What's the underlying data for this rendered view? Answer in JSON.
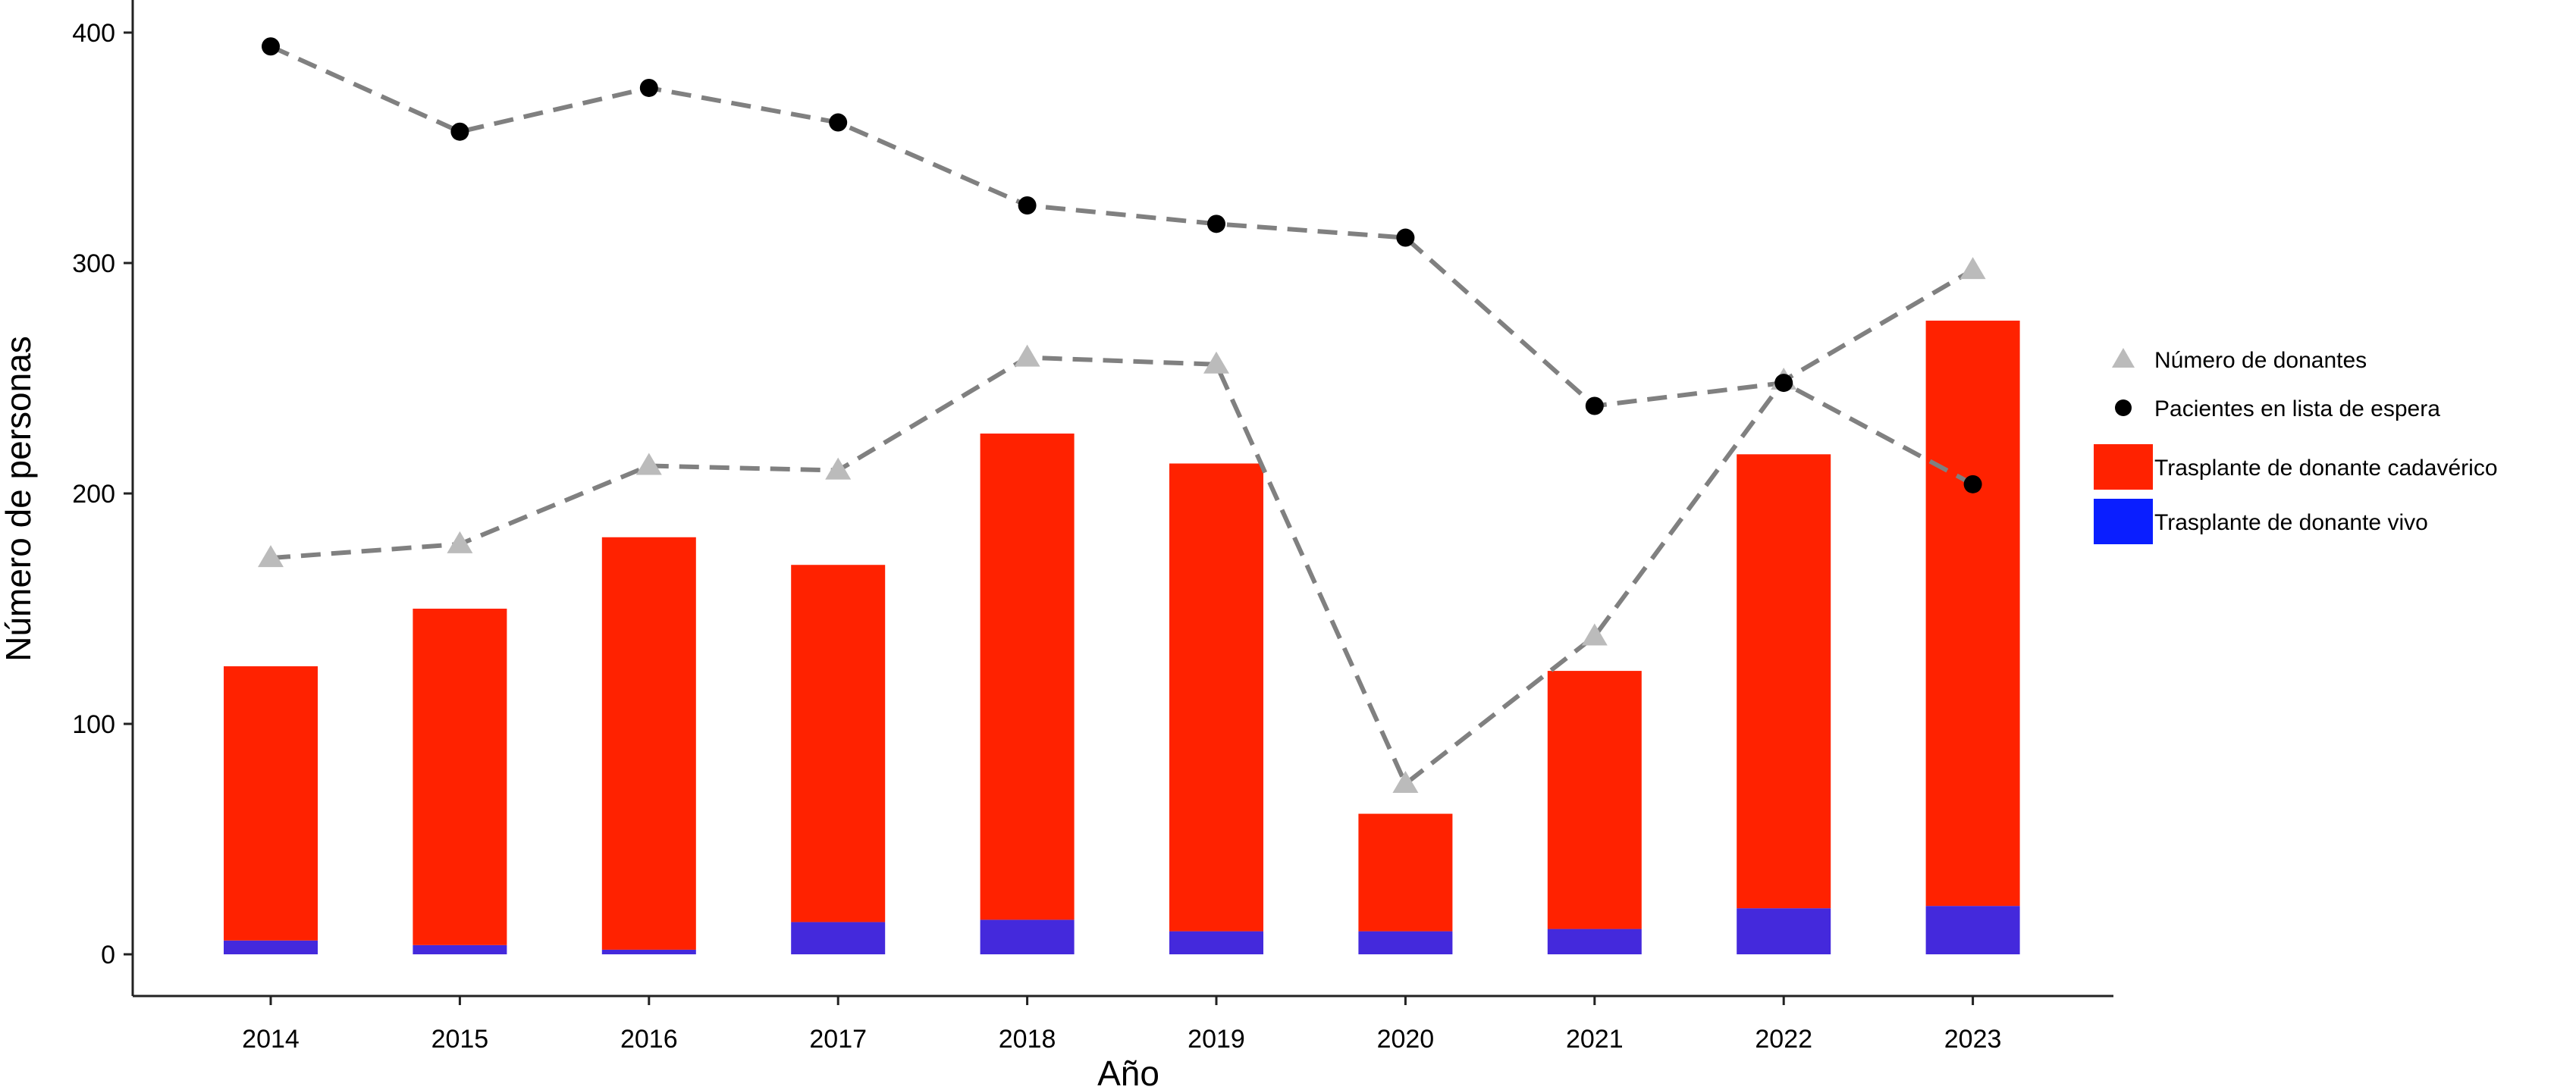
{
  "chart_data": {
    "type": "bar",
    "categories": [
      "2014",
      "2015",
      "2016",
      "2017",
      "2018",
      "2019",
      "2020",
      "2021",
      "2022",
      "2023"
    ],
    "xlabel": "Año",
    "ylabel": "Número de personas",
    "ylim": [
      0,
      400
    ],
    "yticks": [
      0,
      100,
      200,
      300,
      400
    ],
    "grid": false,
    "legend_position": "right",
    "bar_series": [
      {
        "name": "Trasplante de donante vivo",
        "color": "#4429DC",
        "values": [
          6,
          4,
          2,
          14,
          15,
          10,
          10,
          11,
          20,
          21
        ]
      },
      {
        "name": "Trasplante de donante cadavérico",
        "color": "#FF2200",
        "values": [
          119,
          146,
          179,
          155,
          211,
          203,
          51,
          112,
          197,
          254
        ]
      }
    ],
    "line_series": [
      {
        "name": "Número de donantes",
        "marker": "triangle",
        "color": "#BBBBBB",
        "line_color": "#808080",
        "values": [
          172,
          178,
          212,
          210,
          259,
          256,
          74,
          138,
          249,
          297
        ]
      },
      {
        "name": "Pacientes en lista de espera",
        "marker": "circle",
        "color": "#000000",
        "line_color": "#808080",
        "values": [
          394,
          357,
          376,
          361,
          325,
          317,
          311,
          238,
          248,
          204
        ]
      }
    ],
    "legend": [
      {
        "label": "Número de donantes",
        "symbol": "triangle",
        "color": "#BBBBBB"
      },
      {
        "label": "Pacientes en lista de espera",
        "symbol": "circle",
        "color": "#000000"
      },
      {
        "label": "Trasplante de donante cadavérico",
        "symbol": "square",
        "color": "#FF2200"
      },
      {
        "label": "Trasplante de donante vivo",
        "symbol": "square",
        "color": "#0A1EFF"
      }
    ]
  }
}
